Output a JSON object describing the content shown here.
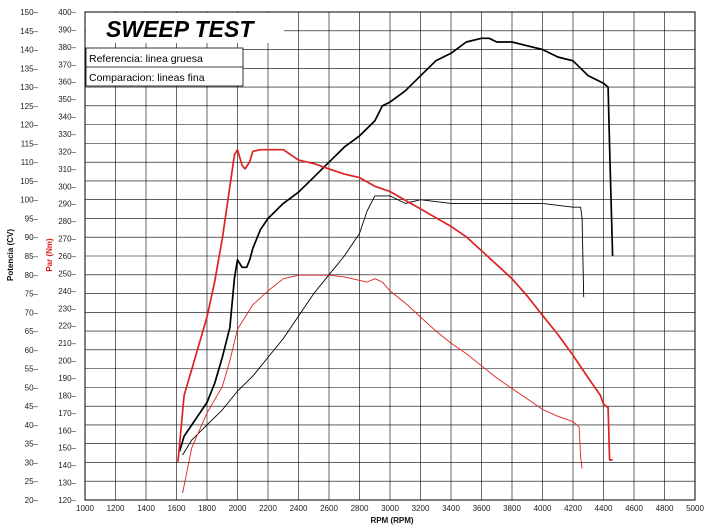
{
  "chart_data": {
    "type": "line",
    "title": "SWEEP TEST",
    "legend": {
      "referencia": "Referencia: linea gruesa",
      "comparacion": "Comparacion: lineas fina"
    },
    "xlabel": "RPM (RPM)",
    "ylabel_power": "Potencia (CV)",
    "ylabel_torque": "Par (Nm)",
    "xlim": [
      1000,
      5000
    ],
    "x_ticks": [
      1000,
      1200,
      1400,
      1600,
      1800,
      2000,
      2200,
      2400,
      2600,
      2800,
      3000,
      3200,
      3400,
      3600,
      3800,
      4000,
      4200,
      4400,
      4600,
      4800,
      5000
    ],
    "ylim_power": [
      20,
      150
    ],
    "y_ticks_power": [
      20,
      25,
      30,
      35,
      40,
      45,
      50,
      55,
      60,
      65,
      70,
      75,
      80,
      85,
      90,
      95,
      100,
      105,
      110,
      115,
      120,
      125,
      130,
      135,
      140,
      145,
      150
    ],
    "ylim_torque": [
      120,
      400
    ],
    "y_ticks_torque": [
      120,
      130,
      140,
      150,
      160,
      170,
      180,
      190,
      200,
      210,
      220,
      230,
      240,
      250,
      260,
      270,
      280,
      290,
      300,
      310,
      320,
      330,
      340,
      350,
      360,
      370,
      380,
      390,
      400
    ],
    "grid": true,
    "colors": {
      "power": "#000000",
      "torque": "#dd2222"
    },
    "series": [
      {
        "axis": "power",
        "style": "thick",
        "x": [
          1620,
          1650,
          1700,
          1750,
          1800,
          1850,
          1900,
          1950,
          1980,
          2000,
          2030,
          2060,
          2080,
          2100,
          2150,
          2200,
          2300,
          2400,
          2500,
          2600,
          2700,
          2800,
          2900,
          2950,
          3000,
          3100,
          3200,
          3300,
          3400,
          3500,
          3600,
          3650,
          3700,
          3800,
          3900,
          4000,
          4100,
          4200,
          4300,
          4400,
          4430,
          4440,
          4460
        ],
        "y": [
          33,
          37,
          40,
          43,
          46,
          51,
          58,
          66,
          79,
          84,
          82,
          82,
          84,
          87,
          92,
          95,
          99,
          102,
          106,
          110,
          114,
          117,
          121,
          125,
          126,
          129,
          133,
          137,
          139,
          142,
          143,
          143,
          142,
          142,
          141,
          140,
          138,
          137,
          133,
          131,
          130,
          114,
          85
        ]
      },
      {
        "axis": "power",
        "style": "thin",
        "x": [
          1640,
          1700,
          1800,
          1900,
          2000,
          2100,
          2200,
          2300,
          2400,
          2500,
          2600,
          2700,
          2800,
          2850,
          2900,
          2950,
          3000,
          3100,
          3200,
          3400,
          3600,
          3800,
          4000,
          4200,
          4250,
          4260,
          4270
        ],
        "y": [
          32,
          36,
          40,
          44,
          49,
          53,
          58,
          63,
          69,
          75,
          80,
          85,
          91,
          97,
          101,
          101,
          101,
          99,
          100,
          99,
          99,
          99,
          99,
          98,
          98,
          95,
          74
        ]
      },
      {
        "axis": "torque",
        "style": "thick",
        "x": [
          1610,
          1650,
          1700,
          1750,
          1800,
          1850,
          1900,
          1950,
          1980,
          2000,
          2030,
          2050,
          2080,
          2100,
          2150,
          2200,
          2300,
          2400,
          2500,
          2600,
          2700,
          2800,
          2900,
          3000,
          3100,
          3200,
          3300,
          3400,
          3500,
          3600,
          3700,
          3800,
          3900,
          4000,
          4100,
          4200,
          4300,
          4380,
          4400,
          4430,
          4440,
          4460
        ],
        "y": [
          142,
          180,
          195,
          210,
          225,
          245,
          270,
          300,
          318,
          321,
          312,
          310,
          314,
          320,
          321,
          321,
          321,
          315,
          313,
          310,
          307,
          305,
          300,
          297,
          292,
          287,
          282,
          277,
          271,
          263,
          255,
          247,
          237,
          226,
          215,
          203,
          190,
          180,
          175,
          173,
          143,
          143
        ]
      },
      {
        "axis": "torque",
        "style": "thin",
        "x": [
          1640,
          1700,
          1800,
          1900,
          1950,
          2000,
          2100,
          2200,
          2300,
          2400,
          2500,
          2600,
          2700,
          2800,
          2850,
          2900,
          2950,
          3000,
          3100,
          3200,
          3300,
          3400,
          3500,
          3600,
          3700,
          3800,
          3900,
          4000,
          4100,
          4200,
          4240,
          4250,
          4260
        ],
        "y": [
          124,
          150,
          170,
          185,
          200,
          218,
          232,
          240,
          247,
          249,
          249,
          249,
          248,
          246,
          245,
          247,
          245,
          240,
          233,
          225,
          217,
          210,
          204,
          197,
          190,
          184,
          178,
          172,
          168,
          165,
          162,
          145,
          138
        ]
      }
    ]
  }
}
